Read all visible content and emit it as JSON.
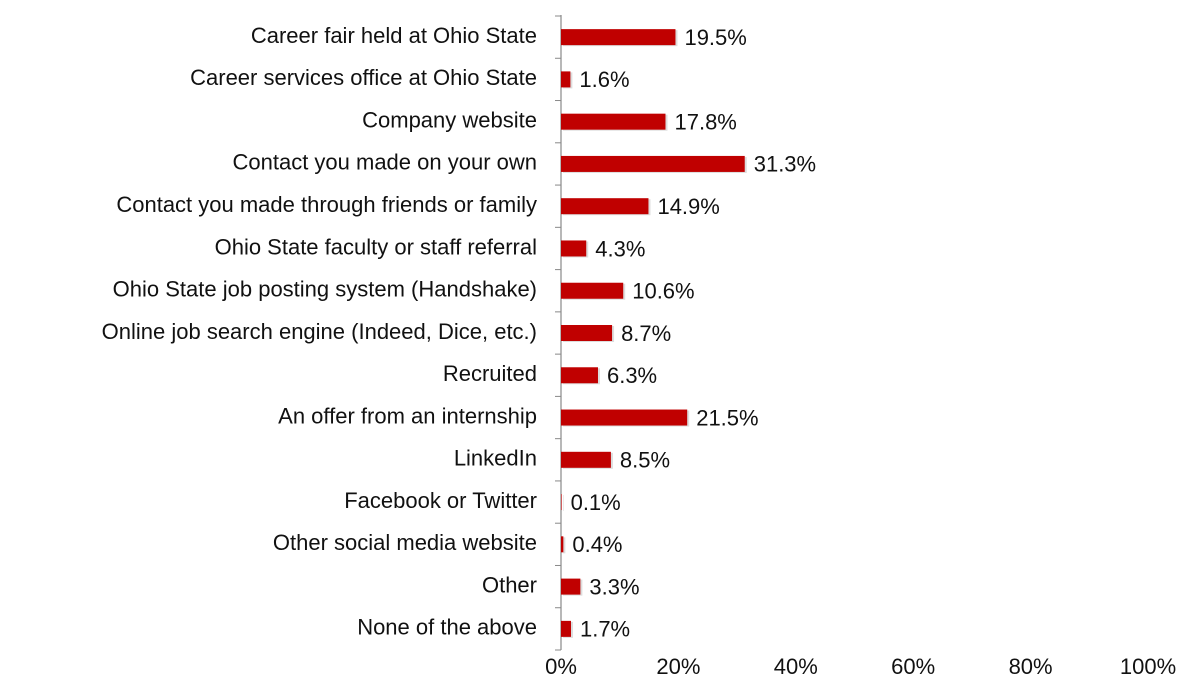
{
  "chart_data": {
    "type": "barh",
    "categories": [
      "Career fair held at Ohio State",
      "Career services office at Ohio State",
      "Company website",
      "Contact you made on your own",
      "Contact you made through friends or family",
      "Ohio State faculty or staff referral",
      "Ohio State job posting system (Handshake)",
      "Online job search engine (Indeed, Dice, etc.)",
      "Recruited",
      "An offer from an internship",
      "LinkedIn",
      "Facebook or Twitter",
      "Other social media website",
      "Other",
      "None of the above"
    ],
    "values": [
      19.5,
      1.6,
      17.8,
      31.3,
      14.9,
      4.3,
      10.6,
      8.7,
      6.3,
      21.5,
      8.5,
      0.1,
      0.4,
      3.3,
      1.7
    ],
    "value_labels": [
      "19.5%",
      "1.6%",
      "17.8%",
      "31.3%",
      "14.9%",
      "4.3%",
      "10.6%",
      "8.7%",
      "6.3%",
      "21.5%",
      "8.5%",
      "0.1%",
      "0.4%",
      "3.3%",
      "1.7%"
    ],
    "color": "#c00000",
    "xlim": [
      0,
      100
    ],
    "xticks": [
      {
        "value": 0,
        "label": "0%"
      },
      {
        "value": 20,
        "label": "20%"
      },
      {
        "value": 40,
        "label": "40%"
      },
      {
        "value": 60,
        "label": "60%"
      },
      {
        "value": 80,
        "label": "80%"
      },
      {
        "value": 100,
        "label": "100%"
      }
    ],
    "grid": false
  }
}
